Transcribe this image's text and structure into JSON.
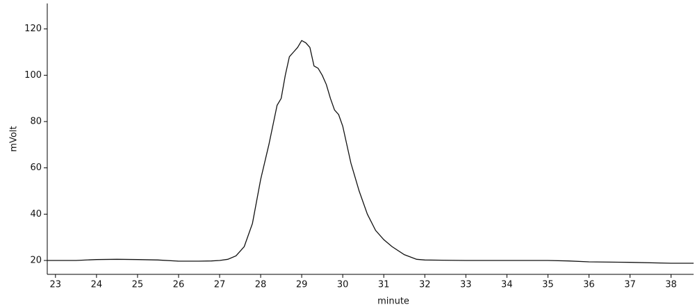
{
  "chart_data": {
    "type": "line",
    "x_label": "minute",
    "y_label": "mVolt",
    "x": [
      22.8,
      23.5,
      24,
      24.5,
      25,
      25.5,
      26,
      26.5,
      26.8,
      27,
      27.2,
      27.4,
      27.6,
      27.8,
      28.0,
      28.2,
      28.4,
      28.5,
      28.6,
      28.7,
      28.8,
      28.9,
      29.0,
      29.1,
      29.2,
      29.3,
      29.4,
      29.5,
      29.6,
      29.7,
      29.8,
      29.9,
      30.0,
      30.2,
      30.4,
      30.6,
      30.8,
      31.0,
      31.2,
      31.5,
      31.8,
      32,
      33,
      34,
      35,
      35.5,
      36,
      37,
      38,
      38.55
    ],
    "series": [
      {
        "color": "#111111",
        "values": [
          20,
          20,
          20.4,
          20.5,
          20.4,
          20.2,
          19.7,
          19.7,
          19.8,
          20,
          20.5,
          22,
          26,
          36,
          55,
          70,
          87,
          90,
          100,
          108,
          110,
          112,
          115,
          114,
          112,
          104,
          103,
          100,
          96,
          90,
          85,
          83,
          78,
          62,
          50,
          40,
          33,
          29,
          26,
          22.5,
          20.5,
          20.2,
          20,
          20,
          20,
          19.8,
          19.4,
          19.2,
          18.8,
          18.8
        ]
      }
    ],
    "xlim": [
      22.8,
      38.55
    ],
    "ylim": [
      14,
      131
    ],
    "xticks": [
      23,
      24,
      25,
      26,
      27,
      28,
      29,
      30,
      31,
      32,
      33,
      34,
      35,
      36,
      37,
      38
    ],
    "yticks": [
      20,
      40,
      60,
      80,
      100,
      120
    ]
  }
}
